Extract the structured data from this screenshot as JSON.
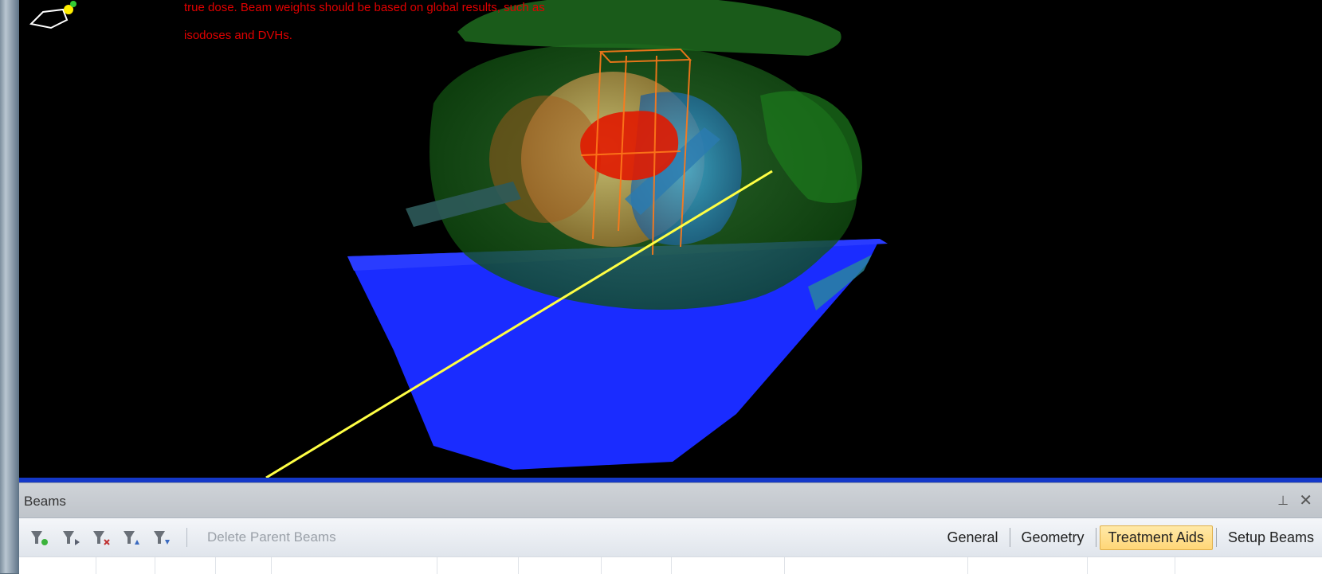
{
  "viewport": {
    "warning_lines": [
      "true dose. Beam weights should be based on global results, such as",
      "isodoses and DVHs."
    ],
    "colors": {
      "background": "#000000",
      "warning_text": "#e00000",
      "couch": "#1a2cff",
      "body_contour": "#1e8a1e",
      "target_red": "#e01a00",
      "beam_line": "#ffff44",
      "bottom_border": "#1438c8"
    }
  },
  "beams_panel": {
    "title": "Beams",
    "pin_icon": "pin-icon",
    "close_icon": "close-icon"
  },
  "toolbar": {
    "buttons": [
      "add-beam-icon",
      "insert-beam-icon",
      "delete-beam-icon",
      "move-beam-up-icon",
      "move-beam-down-icon"
    ],
    "delete_parent_label": "Delete Parent Beams",
    "tabs": [
      {
        "label": "General",
        "active": false
      },
      {
        "label": "Geometry",
        "active": false
      },
      {
        "label": "Treatment Aids",
        "active": true
      },
      {
        "label": "Setup Beams",
        "active": false
      }
    ]
  }
}
